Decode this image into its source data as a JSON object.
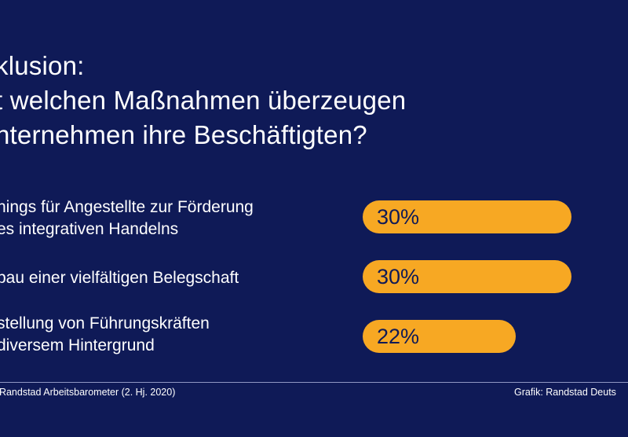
{
  "title_lines": [
    "klusion:",
    "t welchen Maßnahmen überzeugen",
    "nternehmen ihre Beschäftigten?"
  ],
  "chart_data": {
    "type": "bar",
    "orientation": "horizontal",
    "categories": [
      [
        "nings für Angestellte zur Förderung",
        "es integrativen Handelns"
      ],
      [
        "bau einer vielfältigen Belegschaft"
      ],
      [
        "stellung von Führungskräften",
        "diversem Hintergrund"
      ]
    ],
    "values": [
      30,
      30,
      22
    ],
    "value_labels": [
      "30%",
      "30%",
      "22%"
    ],
    "unit": "%",
    "bar_color": "#f7a823"
  },
  "footer": {
    "source": ": Randstad Arbeitsbarometer (2. Hj. 2020)",
    "credit": "Grafik: Randstad Deuts"
  },
  "colors": {
    "background": "#0f1a57",
    "bar": "#f7a823",
    "text": "#ffffff"
  }
}
